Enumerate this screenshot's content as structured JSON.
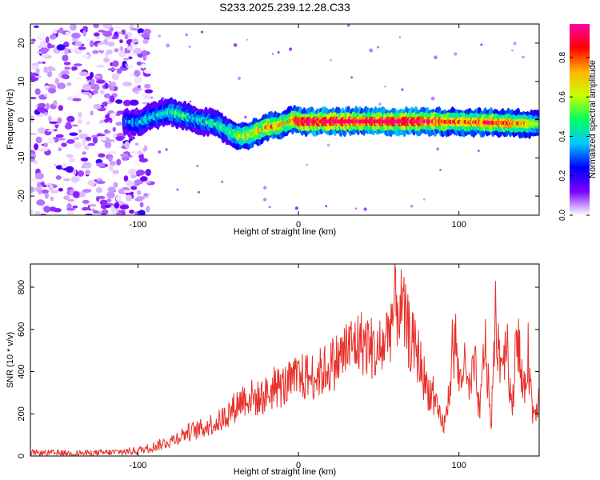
{
  "title": "S233.2025.239.12.28.C33",
  "colors": {
    "snr_line": "#e8302a",
    "axis": "#000000",
    "background": "#ffffff"
  },
  "colorbar": {
    "label": "Normalized spectral amplitude",
    "ticks": [
      "0.0",
      "0.2",
      "0.4",
      "0.6",
      "0.8"
    ],
    "tick_values": [
      0.0,
      0.2,
      0.4,
      0.6,
      0.8
    ],
    "range": [
      0,
      0.97
    ],
    "colormap": [
      "#ffffff",
      "#7b00ff",
      "#0000ff",
      "#00c8ff",
      "#00ff60",
      "#c8ff00",
      "#ffb400",
      "#ff0000",
      "#ff00aa"
    ]
  },
  "chart_data": [
    {
      "type": "heatmap",
      "id": "spectrogram",
      "title": "S233.2025.239.12.28.C33",
      "xlabel": "Height of straight line (km)",
      "ylabel": "Frequency (Hz)",
      "xlim": [
        -167,
        150
      ],
      "ylim": [
        -25,
        25
      ],
      "xticks": [
        -100,
        0,
        100
      ],
      "xtick_labels": [
        "-100",
        "0",
        "100"
      ],
      "yticks": [
        -20,
        -10,
        0,
        10,
        20
      ],
      "ytick_labels": [
        "-20",
        "-10",
        "0",
        "10",
        "20"
      ],
      "ridge": {
        "x": [
          -108,
          -100,
          -90,
          -80,
          -70,
          -60,
          -50,
          -42,
          -35,
          -28,
          -20,
          -12,
          -6,
          -3,
          0,
          20,
          40,
          60,
          80,
          100,
          120,
          140,
          150
        ],
        "y": [
          -0.5,
          -0.8,
          1.0,
          2.0,
          0.8,
          -0.3,
          -1.5,
          -3.5,
          -4.5,
          -3.5,
          -2.0,
          -1.5,
          -0.5,
          0.0,
          -0.5,
          -0.5,
          -0.5,
          -0.5,
          -0.5,
          -0.6,
          -0.8,
          -1.0,
          -1.2
        ],
        "amplitude": [
          0.35,
          0.4,
          0.45,
          0.5,
          0.5,
          0.45,
          0.5,
          0.55,
          0.7,
          0.75,
          0.85,
          0.8,
          0.75,
          0.8,
          0.95,
          0.95,
          0.95,
          0.95,
          0.9,
          0.8,
          0.85,
          0.75,
          0.6
        ]
      },
      "noise_region": {
        "x_from": -167,
        "x_to": -100,
        "amplitude_max": 0.2
      }
    },
    {
      "type": "line",
      "id": "snr",
      "xlabel": "Height of straight line (km)",
      "ylabel": "SNR (10 * v/v)",
      "xlim": [
        -167,
        150
      ],
      "ylim": [
        0,
        910
      ],
      "xticks": [
        -100,
        0,
        100
      ],
      "xtick_labels": [
        "-100",
        "0",
        "100"
      ],
      "yticks": [
        0,
        200,
        400,
        600,
        800
      ],
      "ytick_labels": [
        "0",
        "200",
        "400",
        "600",
        "800"
      ],
      "series": [
        {
          "name": "SNR",
          "color": "#e8302a",
          "x": [
            -167,
            -140,
            -120,
            -100,
            -90,
            -80,
            -70,
            -60,
            -55,
            -50,
            -45,
            -40,
            -35,
            -30,
            -25,
            -20,
            -15,
            -10,
            -5,
            0,
            5,
            10,
            15,
            20,
            25,
            30,
            35,
            40,
            45,
            50,
            55,
            60,
            63,
            66,
            70,
            75,
            80,
            83,
            85,
            88,
            90,
            92,
            95,
            98,
            100,
            103,
            106,
            110,
            113,
            116,
            120,
            123,
            126,
            130,
            133,
            136,
            140,
            143,
            146,
            150
          ],
          "y": [
            15,
            12,
            15,
            25,
            45,
            70,
            110,
            130,
            150,
            160,
            195,
            230,
            270,
            280,
            270,
            290,
            320,
            330,
            345,
            370,
            375,
            380,
            400,
            430,
            460,
            500,
            530,
            540,
            520,
            470,
            570,
            700,
            720,
            650,
            550,
            470,
            320,
            300,
            240,
            180,
            150,
            170,
            400,
            550,
            350,
            440,
            300,
            420,
            180,
            570,
            150,
            640,
            440,
            560,
            180,
            650,
            250,
            500,
            200,
            280
          ],
          "noise_std": 12,
          "noise_rel": 0.28
        }
      ]
    }
  ]
}
